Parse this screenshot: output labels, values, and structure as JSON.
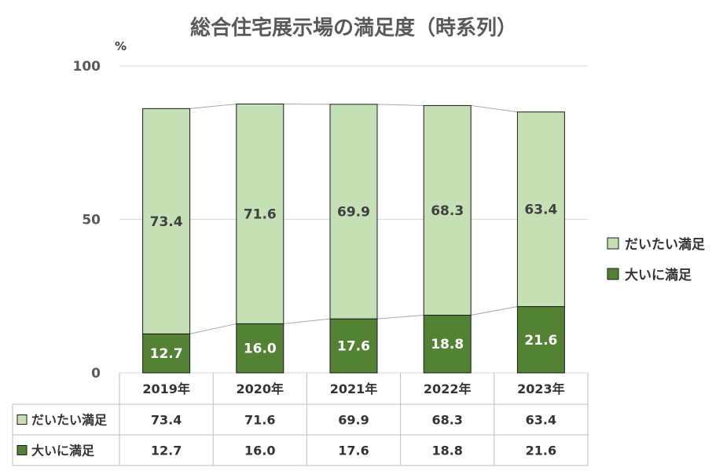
{
  "chart_data": {
    "type": "bar",
    "stacked": true,
    "title": "総合住宅展示場の満足度（時系列）",
    "y_unit": "%",
    "ylim": [
      0,
      100
    ],
    "y_ticks": [
      0,
      50,
      100
    ],
    "categories": [
      "2019年",
      "2020年",
      "2021年",
      "2022年",
      "2023年"
    ],
    "series": [
      {
        "name": "大いに満足",
        "values": [
          12.7,
          16.0,
          17.6,
          18.8,
          21.6
        ],
        "color": "#548235"
      },
      {
        "name": "だいたい満足",
        "values": [
          73.4,
          71.6,
          69.9,
          68.3,
          63.4
        ],
        "color": "#c5e0b4"
      }
    ],
    "legend": [
      "だいたい満足",
      "大いに満足"
    ],
    "legend_position": "right",
    "data_table": true,
    "table_rows": [
      {
        "label": "だいたい満足",
        "values": [
          "73.4",
          "71.6",
          "69.9",
          "68.3",
          "63.4"
        ]
      },
      {
        "label": "大いに満足",
        "values": [
          "12.7",
          "16.0",
          "17.6",
          "18.8",
          "21.6"
        ]
      }
    ],
    "grid": true
  }
}
